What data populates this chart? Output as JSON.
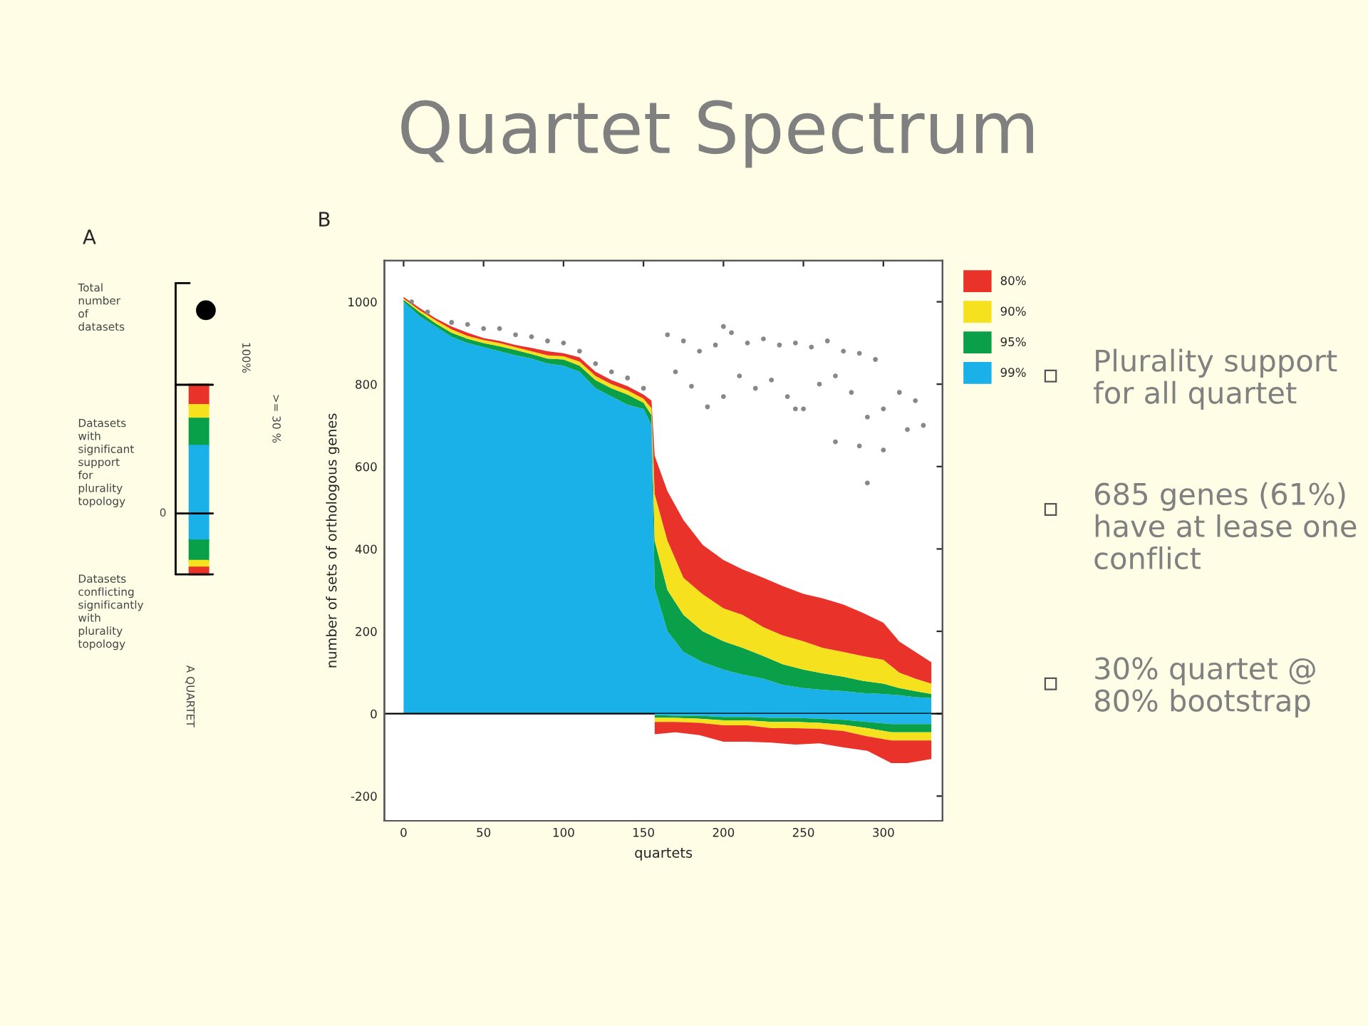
{
  "chart_data": [
    {
      "type": "other",
      "title": "Quartet Spectrum",
      "annotations": [
        "Plurality support for all quartet",
        "685 genes (61%) have at lease one conflict",
        "30% quartet @ 80% bootstrap"
      ]
    },
    {
      "type": "other",
      "title": "A",
      "annotations": [
        "Total number of datasets",
        "Datasets with significant support for plurality topology",
        "Datasets conflicting significantly with plurality topology",
        "0",
        "100%",
        ">= 30 %",
        "A QUARTET"
      ]
    },
    {
      "type": "area",
      "title": "B",
      "xlabel": "quartets",
      "ylabel": "number of sets of orthologous genes",
      "stacked": true,
      "legend": "top right",
      "x": [
        0,
        10,
        20,
        30,
        40,
        50,
        60,
        70,
        80,
        90,
        100,
        110,
        120,
        130,
        140,
        150,
        155,
        157,
        165,
        175,
        187,
        200,
        212,
        225,
        237,
        250,
        262,
        275,
        287,
        300,
        310,
        320,
        330
      ],
      "xlim": [
        -12,
        337
      ],
      "xticks": [
        0,
        50,
        100,
        150,
        200,
        250,
        300
      ],
      "ylim": [
        -260,
        1100
      ],
      "yticks": [
        -200,
        0,
        200,
        400,
        600,
        800,
        1000
      ],
      "ref_lines": [
        {
          "axis": "y",
          "value": 0,
          "color": "#000000"
        }
      ],
      "series": [
        {
          "name": "99%",
          "color": "#1ab0e8",
          "values": [
            1000,
            965,
            940,
            915,
            900,
            890,
            880,
            870,
            862,
            850,
            845,
            830,
            790,
            770,
            750,
            740,
            700,
            305,
            200,
            150,
            125,
            107,
            95,
            85,
            70,
            62,
            58,
            55,
            50,
            48,
            45,
            40,
            38
          ]
        },
        {
          "name": "95%",
          "color": "#0aa04a",
          "values": [
            5,
            10,
            8,
            10,
            10,
            10,
            12,
            13,
            11,
            12,
            15,
            15,
            20,
            20,
            25,
            15,
            25,
            115,
            100,
            90,
            75,
            69,
            65,
            55,
            50,
            45,
            40,
            35,
            30,
            25,
            17,
            15,
            10
          ]
        },
        {
          "name": "90%",
          "color": "#f5e11e",
          "values": [
            3,
            5,
            7,
            8,
            7,
            7,
            8,
            7,
            7,
            8,
            8,
            10,
            10,
            10,
            10,
            10,
            17,
            113,
            120,
            90,
            90,
            80,
            80,
            70,
            70,
            69,
            62,
            60,
            60,
            58,
            38,
            30,
            25
          ]
        },
        {
          "name": "80%",
          "color": "#e8322a",
          "values": [
            4,
            5,
            5,
            7,
            8,
            5,
            5,
            5,
            8,
            10,
            7,
            10,
            10,
            10,
            10,
            10,
            18,
            93,
            120,
            140,
            120,
            117,
            110,
            120,
            120,
            115,
            120,
            115,
            105,
            90,
            75,
            65,
            52
          ]
        },
        {
          "type": "scatter",
          "color": "#888888",
          "marker": "circle",
          "x": [
            5,
            15,
            30,
            40,
            50,
            60,
            70,
            80,
            90,
            100,
            110,
            120,
            130,
            140,
            150,
            165,
            175,
            185,
            195,
            200,
            205,
            215,
            225,
            235,
            245,
            255,
            265,
            275,
            285,
            295,
            170,
            180,
            190,
            200,
            210,
            220,
            230,
            240,
            250,
            260,
            270,
            280,
            290,
            300,
            310,
            320,
            325,
            300,
            315,
            270,
            285,
            290,
            245
          ],
          "values": [
            1000,
            975,
            950,
            945,
            935,
            935,
            920,
            915,
            905,
            900,
            880,
            850,
            830,
            815,
            790,
            920,
            905,
            880,
            895,
            940,
            925,
            900,
            910,
            895,
            900,
            890,
            905,
            880,
            875,
            860,
            830,
            795,
            745,
            770,
            820,
            790,
            810,
            770,
            740,
            800,
            820,
            780,
            720,
            740,
            780,
            760,
            700,
            640,
            690,
            660,
            650,
            560,
            740
          ]
        }
      ]
    },
    {
      "type": "area",
      "stacked": true,
      "x": [
        157,
        170,
        185,
        200,
        215,
        230,
        245,
        260,
        275,
        290,
        305,
        315,
        330
      ],
      "xlim": [
        -12,
        337
      ],
      "ylim": [
        -260,
        1100
      ],
      "series": [
        {
          "color": "#22b4ec",
          "values": [
            -3,
            -5,
            -5,
            -8,
            -8,
            -10,
            -10,
            -12,
            -15,
            -20,
            -25,
            -25,
            -25
          ]
        },
        {
          "color": "#0aa04a",
          "values": [
            -7,
            -5,
            -7,
            -8,
            -8,
            -10,
            -10,
            -10,
            -12,
            -15,
            -20,
            -20,
            -20
          ]
        },
        {
          "color": "#f5e11e",
          "values": [
            -10,
            -10,
            -10,
            -12,
            -12,
            -15,
            -15,
            -15,
            -15,
            -20,
            -20,
            -20,
            -20
          ]
        },
        {
          "color": "#e8322a",
          "values": [
            -30,
            -25,
            -30,
            -40,
            -40,
            -35,
            -40,
            -35,
            -40,
            -35,
            -55,
            -55,
            -45
          ]
        }
      ]
    }
  ]
}
